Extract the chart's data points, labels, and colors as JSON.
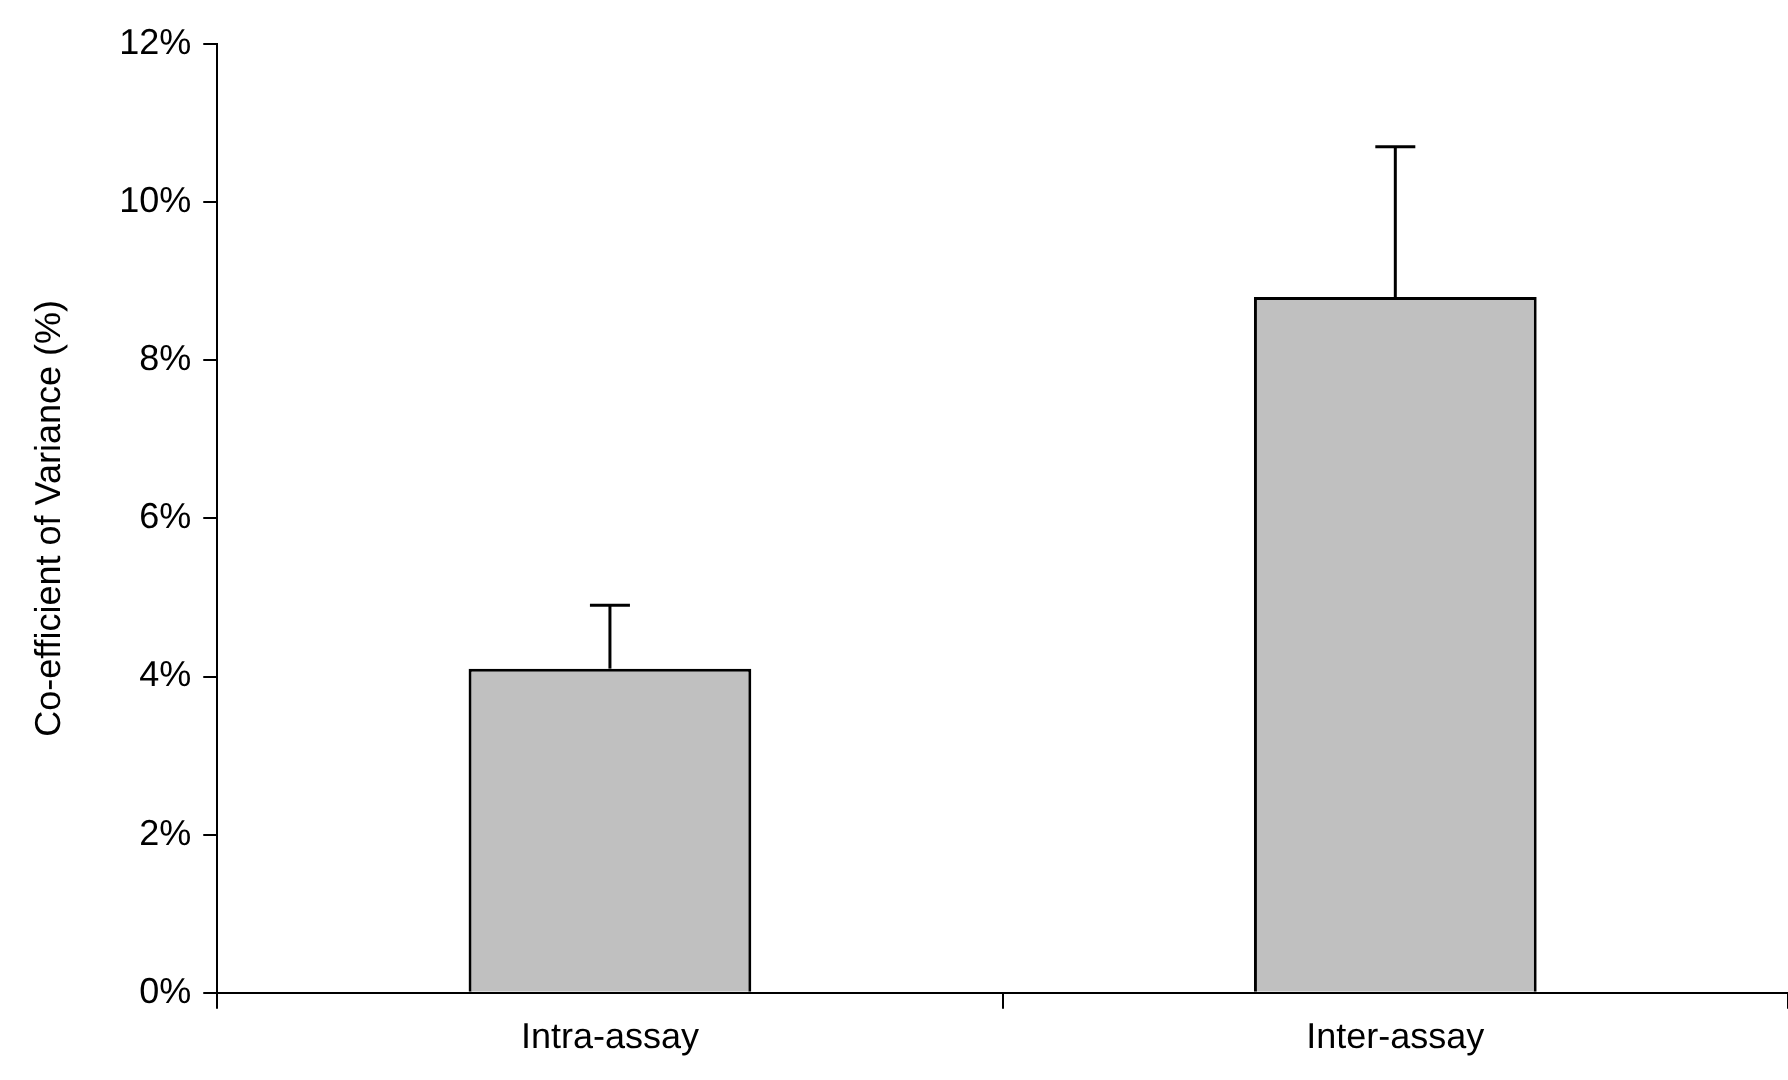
{
  "chart_data": {
    "type": "bar",
    "ylabel": "Co-efficient of Variance (%)",
    "categories": [
      "Intra-assay",
      "Inter-assay"
    ],
    "values": [
      4.1,
      8.8
    ],
    "errors": [
      [
        4.1,
        4.9
      ],
      [
        8.8,
        10.7
      ]
    ],
    "color": "#c0c0c0",
    "ylim": [
      0,
      12
    ],
    "yticks": [
      {
        "value": 0,
        "label": "0%"
      },
      {
        "value": 2,
        "label": "2%"
      },
      {
        "value": 4,
        "label": "4%"
      },
      {
        "value": 6,
        "label": "6%"
      },
      {
        "value": 8,
        "label": "8%"
      },
      {
        "value": 10,
        "label": "10%"
      },
      {
        "value": 12,
        "label": "12%"
      }
    ],
    "grid": false,
    "legend": false
  }
}
